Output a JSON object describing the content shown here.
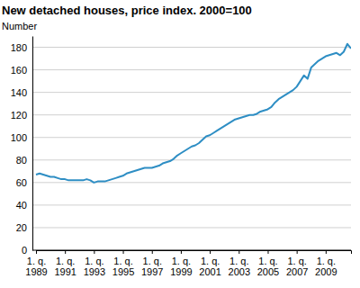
{
  "chart_data": {
    "type": "line",
    "title": "New detached houses, price index. 2000=100",
    "y_label": "Number",
    "categories": [
      "1. q. 1989",
      null,
      null,
      null,
      null,
      null,
      null,
      null,
      "1. q. 1991",
      null,
      null,
      null,
      null,
      null,
      null,
      null,
      "1. q. 1993",
      null,
      null,
      null,
      null,
      null,
      null,
      null,
      "1. q. 1995",
      null,
      null,
      null,
      null,
      null,
      null,
      null,
      "1. q. 1997",
      null,
      null,
      null,
      null,
      null,
      null,
      null,
      "1. q. 1999",
      null,
      null,
      null,
      null,
      null,
      null,
      null,
      "1. q. 2001",
      null,
      null,
      null,
      null,
      null,
      null,
      null,
      "1. q. 2003",
      null,
      null,
      null,
      null,
      null,
      null,
      null,
      "1. q. 2005",
      null,
      null,
      null,
      null,
      null,
      null,
      null,
      "1. q. 2007",
      null,
      null,
      null,
      null,
      null,
      null,
      null,
      "1. q. 2009",
      null,
      null,
      null,
      null,
      null,
      null,
      null
    ],
    "values": [
      67,
      68,
      67,
      66,
      65,
      65,
      64,
      63,
      63,
      62,
      62,
      62,
      62,
      62,
      63,
      62,
      60,
      61,
      61,
      61,
      62,
      63,
      64,
      65,
      66,
      68,
      69,
      70,
      71,
      72,
      73,
      73,
      73,
      74,
      75,
      77,
      78,
      79,
      81,
      84,
      86,
      88,
      90,
      92,
      93,
      95,
      98,
      101,
      102,
      104,
      106,
      108,
      110,
      112,
      114,
      116,
      117,
      118,
      119,
      120,
      120,
      121,
      123,
      124,
      125,
      127,
      131,
      134,
      136,
      138,
      140,
      142,
      145,
      150,
      155,
      152,
      162,
      165,
      168,
      170,
      172,
      173,
      174,
      175,
      173,
      176,
      183,
      179
    ],
    "color": "#2e8ec4",
    "ylim": [
      0,
      190
    ],
    "yticks": [
      0,
      20,
      40,
      60,
      80,
      100,
      120,
      140,
      160,
      180
    ],
    "grid": true
  }
}
